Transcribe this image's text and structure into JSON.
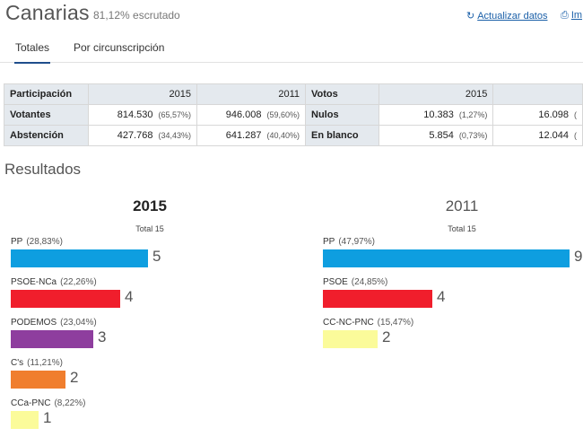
{
  "header": {
    "title": "Canarias",
    "scrutiny": "81,12% escrutado",
    "update_label": "Actualizar datos",
    "print_label": "Im"
  },
  "tabs": [
    {
      "label": "Totales",
      "active": true
    },
    {
      "label": "Por circunscripción",
      "active": false
    }
  ],
  "participation": {
    "title": "Participación",
    "years": [
      "2015",
      "2011"
    ],
    "rows": [
      {
        "label": "Votantes",
        "v2015": "814.530",
        "p2015": "(65,57%)",
        "v2011": "946.008",
        "p2011": "(59,60%)"
      },
      {
        "label": "Abstención",
        "v2015": "427.768",
        "p2015": "(34,43%)",
        "v2011": "641.287",
        "p2011": "(40,40%)"
      }
    ]
  },
  "votes": {
    "title": "Votos",
    "years": [
      "2015",
      ""
    ],
    "rows": [
      {
        "label": "Nulos",
        "v2015": "10.383",
        "p2015": "(1,27%)",
        "v2011": "16.098",
        "p2011": "("
      },
      {
        "label": "En blanco",
        "v2015": "5.854",
        "p2015": "(0,73%)",
        "v2011": "12.044",
        "p2011": "("
      }
    ]
  },
  "results": {
    "title": "Resultados",
    "charts": [
      {
        "year": "2015",
        "total": "Total 15",
        "parties": [
          {
            "name": "PP",
            "pct": "(28,83%)",
            "seats": "5",
            "seats_value": 5,
            "color": "#0e9ee0"
          },
          {
            "name": "PSOE-NCa",
            "pct": "(22,26%)",
            "seats": "4",
            "seats_value": 4,
            "color": "#f01e2c"
          },
          {
            "name": "PODEMOS",
            "pct": "(23,04%)",
            "seats": "3",
            "seats_value": 3,
            "color": "#8e3e9e"
          },
          {
            "name": "C's",
            "pct": "(11,21%)",
            "seats": "2",
            "seats_value": 2,
            "color": "#f07e2e"
          },
          {
            "name": "CCa-PNC",
            "pct": "(8,22%)",
            "seats": "1",
            "seats_value": 1,
            "color": "#fbfb9a"
          }
        ]
      },
      {
        "year": "2011",
        "total": "Total 15",
        "parties": [
          {
            "name": "PP",
            "pct": "(47,97%)",
            "seats": "9",
            "seats_value": 9,
            "color": "#0e9ee0"
          },
          {
            "name": "PSOE",
            "pct": "(24,85%)",
            "seats": "4",
            "seats_value": 4,
            "color": "#f01e2c"
          },
          {
            "name": "CC-NC-PNC",
            "pct": "(15,47%)",
            "seats": "2",
            "seats_value": 2,
            "color": "#fbfb9a"
          }
        ]
      }
    ]
  }
}
